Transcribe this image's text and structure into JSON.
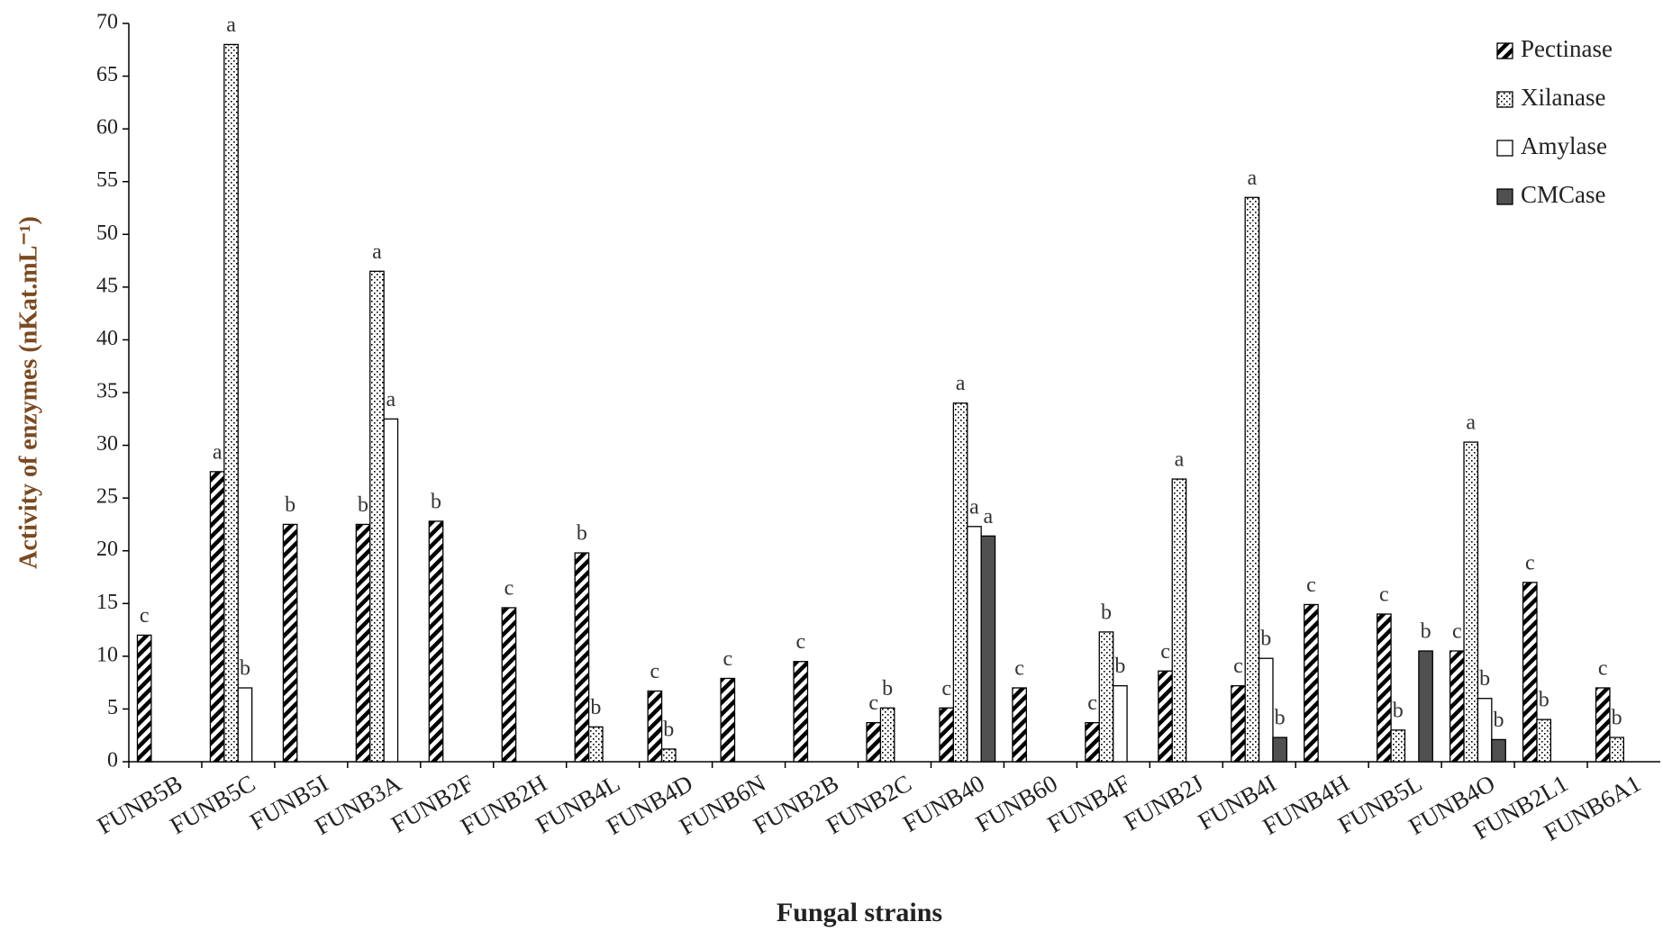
{
  "chart_data": {
    "type": "bar",
    "x_label": "Fungal strains",
    "y_label": "Activity of enzymes (nKat.mL⁻¹)",
    "categories": [
      "FUNB5B",
      "FUNB5C",
      "FUNB5I",
      "FUNB3A",
      "FUNB2F",
      "FUNB2H",
      "FUNB4L",
      "FUNB4D",
      "FUNB6N",
      "FUNB2B",
      "FUNB2C",
      "FUNB40",
      "FUNB60",
      "FUNB4F",
      "FUNB2J",
      "FUNB4I",
      "FUNB4H",
      "FUNB5L",
      "FUNB4O",
      "FUNB2L1",
      "FUNB6A1"
    ],
    "series": [
      {
        "name": "Pectinase",
        "color": "#000000",
        "pattern": "hatch",
        "values": [
          12,
          27.5,
          22.5,
          22.5,
          22.8,
          14.6,
          19.8,
          6.7,
          7.9,
          9.5,
          3.7,
          5.1,
          7,
          3.7,
          8.6,
          7.2,
          14.9,
          14,
          10.5,
          17,
          7
        ],
        "letters": [
          "c",
          "a",
          "b",
          "b",
          "b",
          "c",
          "b",
          "c",
          "c",
          "c",
          "c",
          "c",
          "c",
          "c",
          "c",
          "c",
          "c",
          "c",
          "c",
          "c",
          "c"
        ]
      },
      {
        "name": "Xilanase",
        "color": "#000000",
        "pattern": "dots",
        "values": [
          null,
          68,
          null,
          46.5,
          null,
          null,
          3.3,
          1.2,
          null,
          null,
          5.1,
          34,
          null,
          12.3,
          26.8,
          53.5,
          null,
          3,
          30.3,
          4,
          2.3
        ],
        "letters": [
          null,
          "a",
          null,
          "a",
          null,
          null,
          "b",
          "b",
          null,
          null,
          "b",
          "a",
          null,
          "b",
          "a",
          "a",
          null,
          "b",
          "a",
          "b",
          "b"
        ]
      },
      {
        "name": "Amylase",
        "color": "#ffffff",
        "pattern": "solid",
        "values": [
          null,
          7,
          null,
          32.5,
          null,
          null,
          null,
          null,
          null,
          null,
          null,
          22.3,
          null,
          7.2,
          null,
          9.8,
          null,
          null,
          6,
          null,
          null
        ],
        "letters": [
          null,
          "b",
          null,
          "a",
          null,
          null,
          null,
          null,
          null,
          null,
          null,
          "a",
          null,
          "b",
          null,
          "b",
          null,
          null,
          "b",
          null,
          null
        ]
      },
      {
        "name": "CMCase",
        "color": "#505050",
        "pattern": "solid",
        "values": [
          null,
          null,
          null,
          null,
          null,
          null,
          null,
          null,
          null,
          null,
          null,
          21.4,
          null,
          null,
          null,
          2.3,
          null,
          10.5,
          2.1,
          null,
          null
        ],
        "letters": [
          null,
          null,
          null,
          null,
          null,
          null,
          null,
          null,
          null,
          null,
          null,
          "a",
          null,
          null,
          null,
          "b",
          null,
          "b",
          "b",
          null,
          null
        ]
      }
    ],
    "ylim": [
      0,
      70
    ],
    "yticks": [
      0,
      5,
      10,
      15,
      20,
      25,
      30,
      35,
      40,
      45,
      50,
      55,
      60,
      65,
      70
    ],
    "grid": false,
    "legend": "top-right"
  }
}
